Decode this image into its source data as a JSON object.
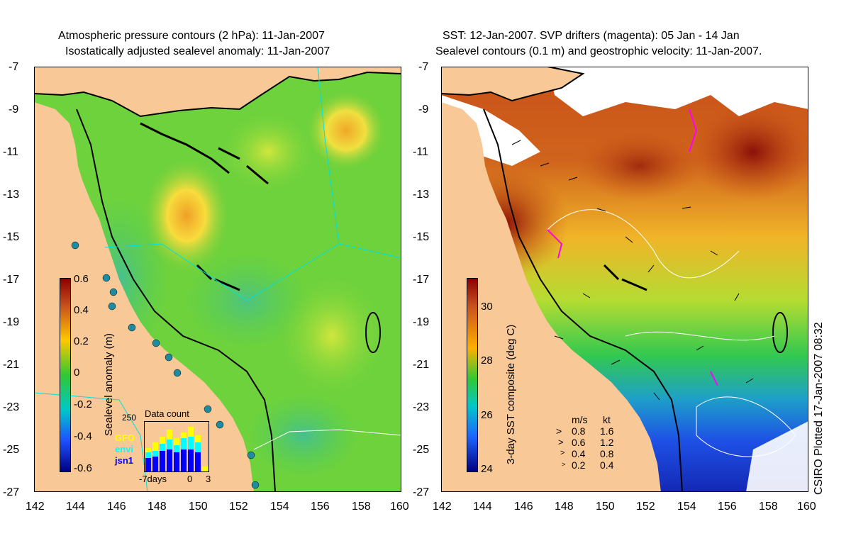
{
  "left_panel": {
    "title_line1": "Atmospheric pressure contours (2 hPa): 11-Jan-2007",
    "title_line2": "Isostatically adjusted sealevel anomaly: 11-Jan-2007",
    "colorbar_label": "Sealevel anomaly (m)",
    "colorbar_ticks": [
      "0.6",
      "0.4",
      "0.2",
      "0",
      "-0.2",
      "-0.4",
      "-0.6"
    ],
    "colorbar_colors": [
      "#8b0000",
      "#c8501e",
      "#ffc800",
      "#32c832",
      "#00c8c8",
      "#1e50ff",
      "#000080"
    ],
    "inset": {
      "title": "Data count",
      "ymax_label": "250",
      "x_labels": [
        "-7days",
        "0",
        "3"
      ],
      "legend": [
        {
          "name": "GFO",
          "color": "#ffff00"
        },
        {
          "name": "envi",
          "color": "#00ffff"
        },
        {
          "name": "jsn1",
          "color": "#0000ff"
        }
      ]
    }
  },
  "right_panel": {
    "title_line1": "SST: 12-Jan-2007. SVP drifters (magenta): 05 Jan - 14 Jan",
    "title_line2": "Sealevel contours (0.1 m) and geostrophic velocity: 11-Jan-2007.",
    "colorbar_label": "3-day SST composite (deg C)",
    "colorbar_ticks": [
      "30",
      "28",
      "26",
      "24"
    ],
    "colorbar_colors": [
      "#8b0000",
      "#c8501e",
      "#ffb000",
      "#32c832",
      "#00c8c8",
      "#1e64ff",
      "#000080"
    ],
    "velocity_legend": {
      "header_ms": "m/s",
      "header_kt": "kt",
      "rows": [
        {
          "ms": "0.8",
          "kt": "1.6"
        },
        {
          "ms": "0.6",
          "kt": "1.2"
        },
        {
          "ms": "0.4",
          "kt": "0.8"
        },
        {
          "ms": "0.2",
          "kt": "0.4"
        }
      ]
    },
    "credit": "CSIRO Plotted 17-Jan-2007 08:32"
  },
  "axes": {
    "lon_ticks": [
      "142",
      "144",
      "146",
      "148",
      "150",
      "152",
      "154",
      "156",
      "158",
      "160"
    ],
    "lat_ticks": [
      "-7",
      "-9",
      "-11",
      "-13",
      "-15",
      "-17",
      "-19",
      "-21",
      "-23",
      "-25",
      "-27"
    ]
  },
  "colors": {
    "land": "#f8c896",
    "sea_green": "#6ed23c",
    "no_data": "#ffffff"
  }
}
